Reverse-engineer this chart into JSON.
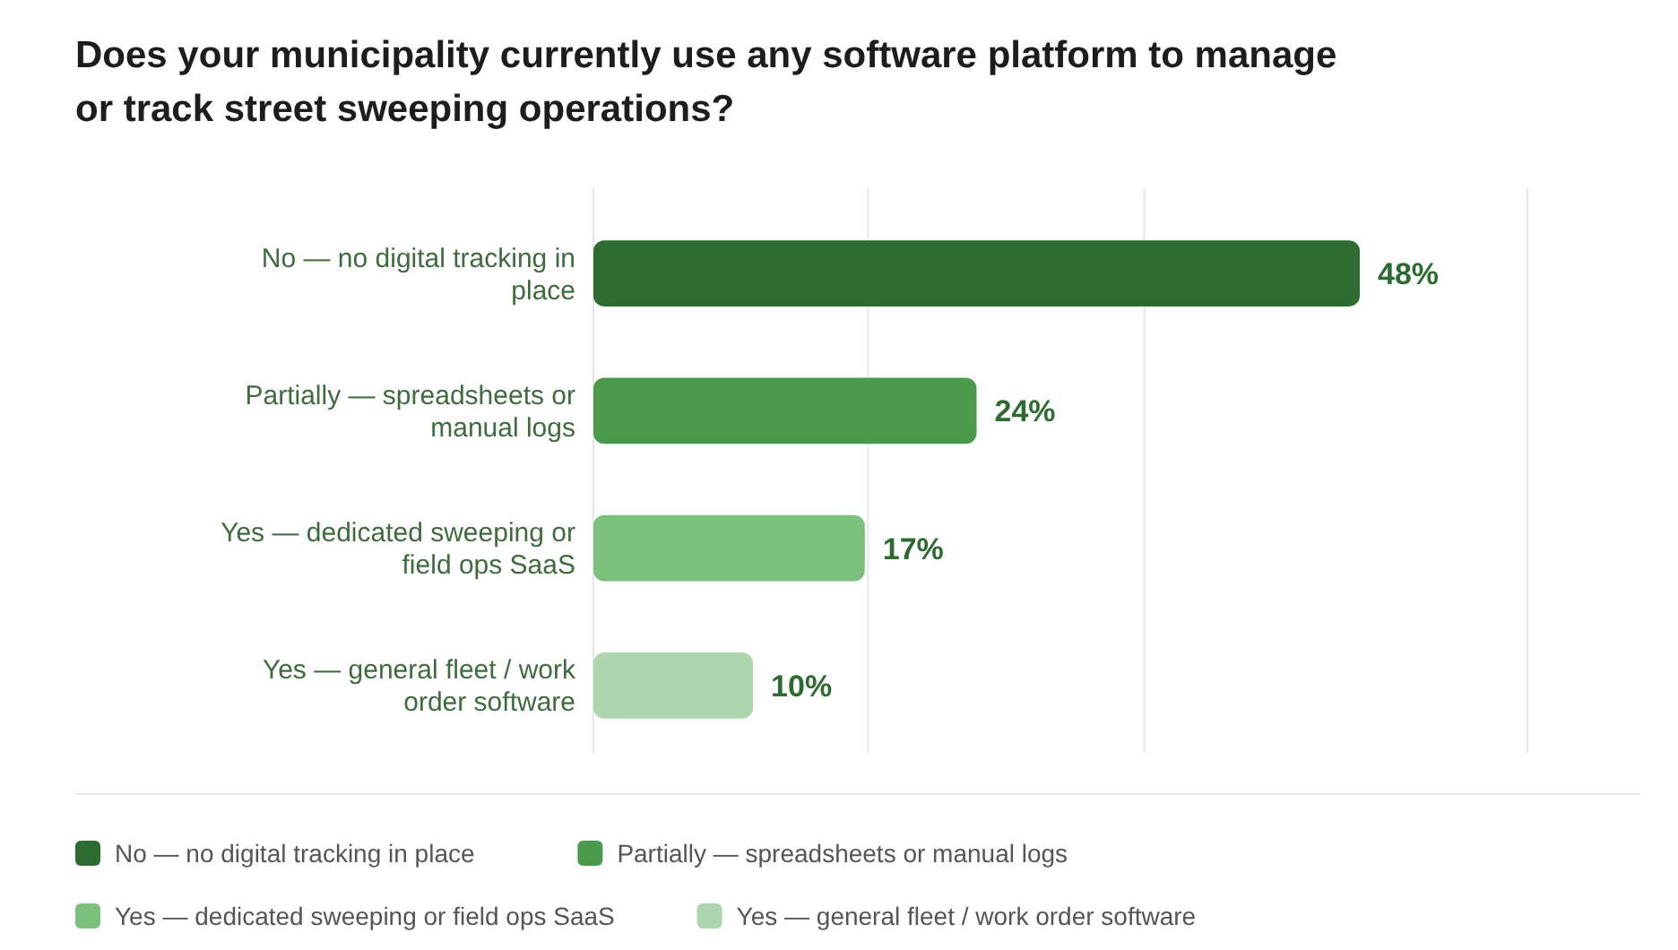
{
  "chart_data": {
    "type": "bar",
    "orientation": "horizontal",
    "stacked": true,
    "title": "Does your municipality currently use any software platform to manage or track street sweeping operations?",
    "categories": [
      "No — no digital tracking in place",
      "Partially — spreadsheets or manual logs",
      "Yes — dedicated sweeping or field ops SaaS",
      "Yes — general fleet / work order software"
    ],
    "series": [
      {
        "name": "No — no digital tracking in place",
        "color": "#2e6b30",
        "values": [
          48,
          null,
          null,
          null
        ],
        "value_labels": [
          "48%",
          null,
          null,
          null
        ]
      },
      {
        "name": "Partially — spreadsheets or manual logs",
        "color": "#4a9a4c",
        "values": [
          null,
          24,
          null,
          null
        ],
        "value_labels": [
          null,
          "24%",
          null,
          null
        ]
      },
      {
        "name": "Yes — dedicated sweeping or field ops SaaS",
        "color": "#7bbf7d",
        "values": [
          null,
          null,
          17,
          null
        ],
        "value_labels": [
          null,
          null,
          "17%",
          null
        ]
      },
      {
        "name": "Yes — general fleet / work order software",
        "color": "#aed6ae",
        "values": [
          null,
          null,
          null,
          10
        ],
        "value_labels": [
          null,
          null,
          null,
          "10%"
        ]
      }
    ],
    "xlim": [
      0,
      58.5
    ],
    "xticks": [
      {
        "value": 0,
        "label": null
      },
      {
        "value": 17.2,
        "label": null
      },
      {
        "value": 34.5,
        "label": null
      },
      {
        "value": 58.5,
        "label": null
      }
    ],
    "grid": "x",
    "tick_labels": "y",
    "legend": "bottom"
  }
}
